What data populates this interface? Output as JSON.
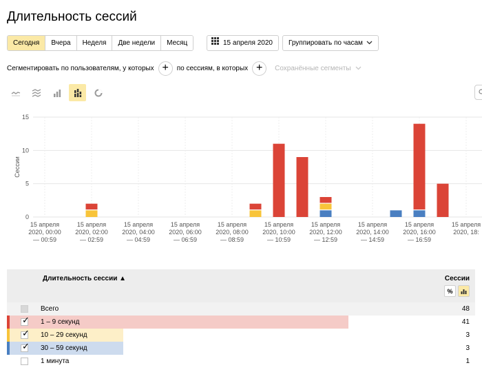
{
  "page": {
    "title": "Длительность сессий"
  },
  "toolbar": {
    "periods": [
      "Сегодня",
      "Вчера",
      "Неделя",
      "Две недели",
      "Месяц"
    ],
    "date_label": "15 апреля 2020",
    "group_label": "Группировать по часам"
  },
  "segment": {
    "users_text": "Сегментировать по пользователям, у которых",
    "sessions_text": "по сессиям, в которых",
    "saved_label": "Сохранённые сегменты"
  },
  "chart_types": [
    "line-chart-icon",
    "area-chart-icon",
    "bar-chart-icon",
    "stacked-bar-chart-icon",
    "pie-chart-icon"
  ],
  "colors": {
    "accent": "#fbe9a6",
    "red": "#db4437",
    "yellow": "#f8c43a",
    "blue": "#4a7fc1"
  },
  "chart_data": {
    "type": "bar",
    "stacked": true,
    "ylabel": "Сессии",
    "ylim": [
      0,
      15
    ],
    "yticks": [
      0,
      5,
      10,
      15
    ],
    "x_hours": [
      0,
      1,
      2,
      3,
      4,
      5,
      6,
      7,
      8,
      9,
      10,
      11,
      12,
      13,
      14,
      15,
      16,
      17,
      18
    ],
    "x_tick_labels": [
      [
        "15 апреля",
        "2020, 00:00",
        "— 00:59"
      ],
      [
        "15 апреля",
        "2020, 02:00",
        "— 02:59"
      ],
      [
        "15 апреля",
        "2020, 04:00",
        "— 04:59"
      ],
      [
        "15 апреля",
        "2020, 06:00",
        "— 06:59"
      ],
      [
        "15 апреля",
        "2020, 08:00",
        "— 08:59"
      ],
      [
        "15 апреля",
        "2020, 10:00",
        "— 10:59"
      ],
      [
        "15 апреля",
        "2020, 12:00",
        "— 12:59"
      ],
      [
        "15 апреля",
        "2020, 14:00",
        "— 14:59"
      ],
      [
        "15 апреля",
        "2020, 16:00",
        "— 16:59"
      ],
      [
        "15 апреля",
        "2020, 18:"
      ]
    ],
    "series": [
      {
        "name": "30 – 59 секунд",
        "color": "#4a7fc1",
        "values": [
          0,
          0,
          0,
          0,
          0,
          0,
          0,
          0,
          0,
          0,
          0,
          0,
          1,
          0,
          0,
          1,
          1,
          0,
          0
        ]
      },
      {
        "name": "10 – 29 секунд",
        "color": "#f8c43a",
        "values": [
          0,
          0,
          1,
          0,
          0,
          0,
          0,
          0,
          0,
          1,
          0,
          0,
          1,
          0,
          0,
          0,
          0,
          0,
          0
        ]
      },
      {
        "name": "1 – 9 секунд",
        "color": "#db4437",
        "values": [
          0,
          0,
          1,
          0,
          0,
          0,
          0,
          0,
          0,
          1,
          11,
          9,
          1,
          0,
          0,
          0,
          13,
          5,
          0
        ]
      }
    ]
  },
  "table": {
    "header_name": "Длительность сессии ▲",
    "header_sessions": "Сессии",
    "toggle_percent": "%",
    "rows": [
      {
        "name": "Всего",
        "value": "48",
        "color": "",
        "checked": false,
        "share": 0
      },
      {
        "name": "1 – 9 секунд",
        "value": "41",
        "color": "#db4437",
        "checked": true,
        "share": 0.854
      },
      {
        "name": "10 – 29 секунд",
        "value": "3",
        "color": "#f8c43a",
        "checked": true,
        "share": 0.0625
      },
      {
        "name": "30 – 59 секунд",
        "value": "3",
        "color": "#4a7fc1",
        "checked": true,
        "share": 0.0625
      },
      {
        "name": "1 минута",
        "value": "1",
        "color": "",
        "checked": false,
        "share": 0
      }
    ]
  }
}
